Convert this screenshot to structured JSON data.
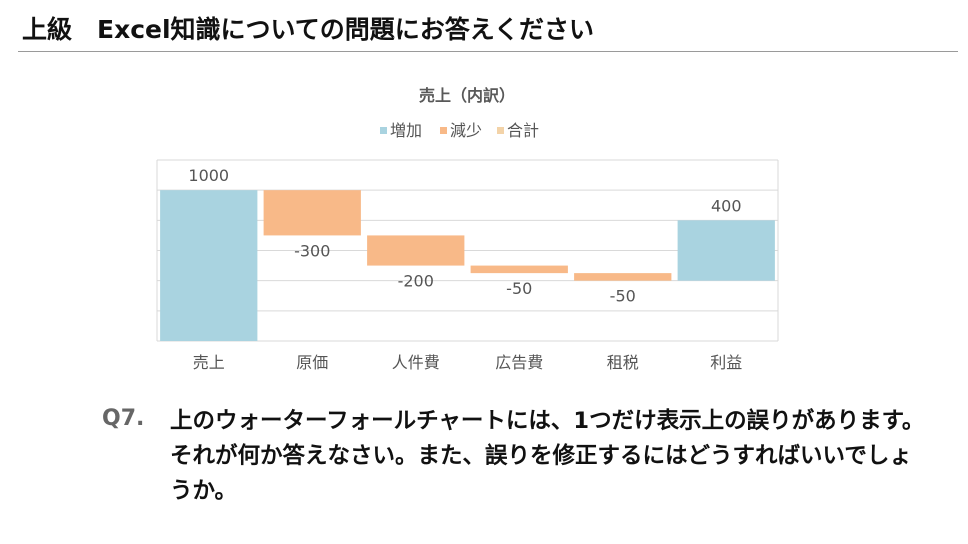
{
  "header": {
    "title": "上級　Excel知識についての問題にお答えください"
  },
  "chart_data": {
    "type": "waterfall",
    "title": "売上（内訳）",
    "legend": [
      {
        "label": "増加",
        "color": "#a9d3e0"
      },
      {
        "label": "減少",
        "color": "#f8b988"
      },
      {
        "label": "合計",
        "color": "#f3d3a8"
      }
    ],
    "legend_position": "top",
    "categories": [
      "売上",
      "原価",
      "人件費",
      "広告費",
      "租税",
      "利益"
    ],
    "values": [
      1000,
      -300,
      -200,
      -50,
      -50,
      400
    ],
    "data_labels": [
      "1000",
      "-300",
      "-200",
      "-50",
      "-50",
      "400"
    ],
    "kinds": [
      "increase",
      "decrease",
      "decrease",
      "decrease",
      "decrease",
      "increase"
    ],
    "ylim": [
      0,
      1200
    ],
    "y_grid_step": 200,
    "grid": true,
    "colors": {
      "increase": "#a9d3e0",
      "decrease": "#f8b988",
      "total": "#f3d3a8",
      "grid": "#d9d9d9",
      "label": "#555555"
    }
  },
  "question": {
    "number": "Q7.",
    "text": "上のウォーターフォールチャートには、1つだけ表示上の誤りがあります。それが何か答えなさい。また、誤りを修正するにはどうすればいいでしょうか。"
  }
}
